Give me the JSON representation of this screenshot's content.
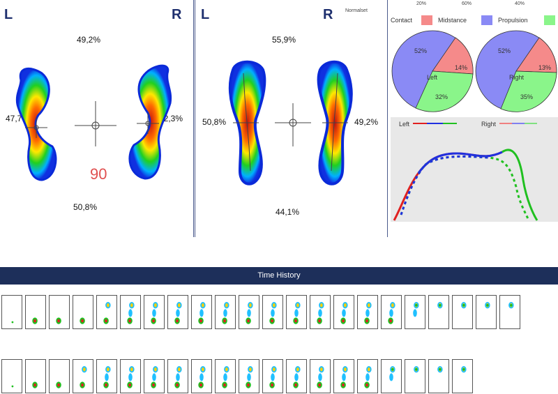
{
  "left_panel": {
    "left_letter": "L",
    "right_letter": "R",
    "top_pct": "49,2%",
    "bottom_pct": "50,8%",
    "left_pct": "47,7%",
    "right_pct": "52,3%",
    "score": "90"
  },
  "mid_panel": {
    "left_letter": "L",
    "right_letter": "R",
    "header_small": "Normalset",
    "top_pct": "55,9%",
    "bottom_pct": "44,1%",
    "left_pct": "50,8%",
    "right_pct": "49,2%"
  },
  "phases": {
    "top_pcts": [
      "20%",
      "60%",
      "40%"
    ],
    "legend": [
      "Contact",
      "Midstance",
      "Propulsion"
    ],
    "colors": {
      "contact": "#f58a8a",
      "midstance": "#8a8af5",
      "propulsion": "#8af58a"
    },
    "left_pie": {
      "contact": 14,
      "midstance": 52,
      "propulsion": 32,
      "center": "Left",
      "labels": [
        "52%",
        "14%",
        "32%"
      ]
    },
    "right_pie": {
      "contact": 13,
      "midstance": 52,
      "propulsion": 35,
      "center": "Right",
      "labels": [
        "52%",
        "13%",
        "35%"
      ]
    }
  },
  "force_graph": {
    "legend_left": "Left",
    "legend_right": "Right"
  },
  "time_history": {
    "title": "Time History",
    "row1_frames": 22,
    "row2_frames": 20
  }
}
